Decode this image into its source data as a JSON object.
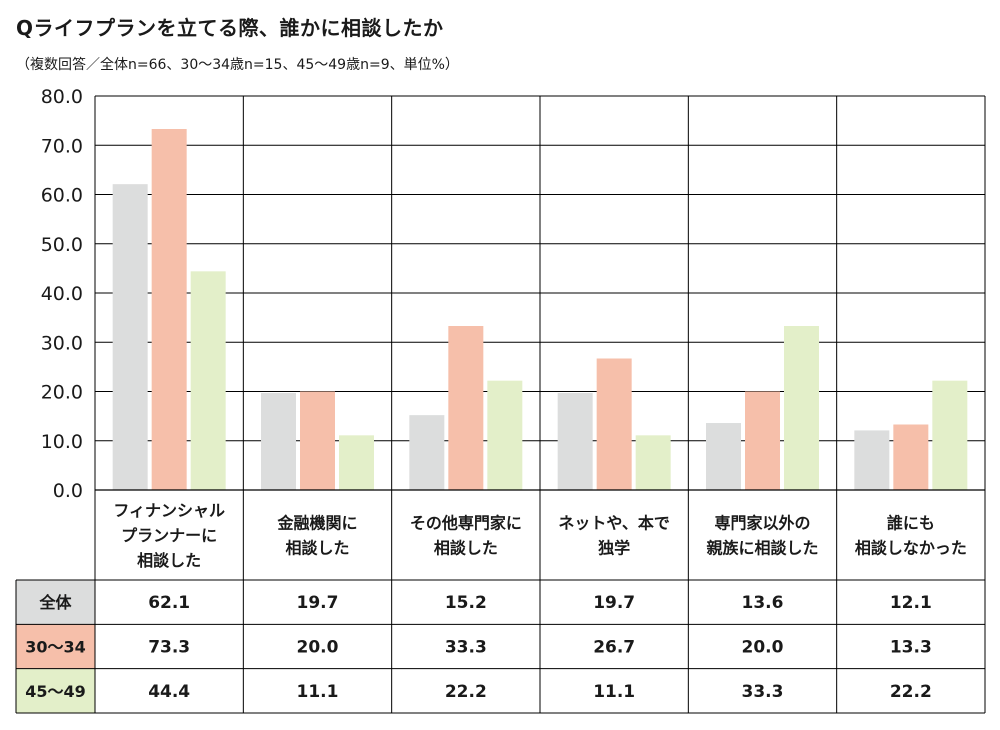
{
  "title": "Qライフプランを立てる際、誰かに相談したか",
  "subtitle": "（複数回答／全体n=66、30〜34歳n=15、45〜49歳n=9、単位%）",
  "colors": {
    "s0": "#dcdddd",
    "s1": "#f6bfaa",
    "s2": "#e3efc9",
    "axis": "#000000",
    "grid": "#000000"
  },
  "chart_data": {
    "type": "bar",
    "categories": [
      [
        "フィナンシャル",
        "プランナーに",
        "相談した"
      ],
      [
        "金融機関に",
        "相談した"
      ],
      [
        "その他専門家に",
        "相談した"
      ],
      [
        "ネットや、本で",
        "独学"
      ],
      [
        "専門家以外の",
        "親族に相談した"
      ],
      [
        "誰にも",
        "相談しなかった"
      ]
    ],
    "series": [
      {
        "name": "全体",
        "values": [
          62.1,
          19.7,
          15.2,
          19.7,
          13.6,
          12.1
        ]
      },
      {
        "name": "30〜34",
        "values": [
          73.3,
          20.0,
          33.3,
          26.7,
          20.0,
          13.3
        ]
      },
      {
        "name": "45〜49",
        "values": [
          44.4,
          11.1,
          22.2,
          11.1,
          33.3,
          22.2
        ]
      }
    ],
    "value_labels": [
      [
        "62.1",
        "19.7",
        "15.2",
        "19.7",
        "13.6",
        "12.1"
      ],
      [
        "73.3",
        "20.0",
        "33.3",
        "26.7",
        "20.0",
        "13.3"
      ],
      [
        "44.4",
        "11.1",
        "22.2",
        "11.1",
        "33.3",
        "22.2"
      ]
    ],
    "yticks": [
      "0.0",
      "10.0",
      "20.0",
      "30.0",
      "40.0",
      "50.0",
      "60.0",
      "70.0",
      "80.0"
    ],
    "ylim": [
      0,
      80
    ],
    "grid": true,
    "legend": "table-below"
  }
}
